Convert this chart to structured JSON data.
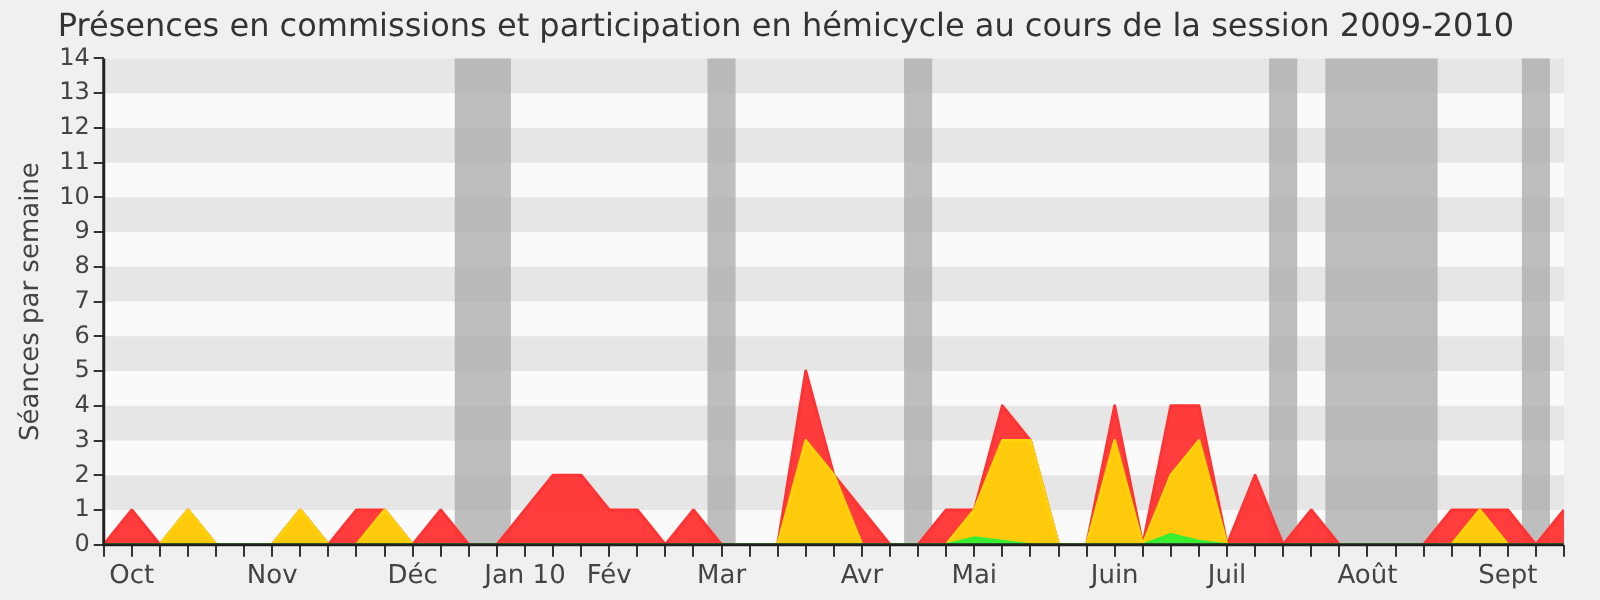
{
  "chart_data": {
    "type": "area",
    "title": "Présences en commissions et participation en hémicycle au cours de la session 2009-2010",
    "ylabel": "Séances par semaine",
    "x": [
      "2009-09-28",
      "2009-10-05",
      "2009-10-12",
      "2009-10-19",
      "2009-10-26",
      "2009-11-02",
      "2009-11-09",
      "2009-11-16",
      "2009-11-23",
      "2009-11-30",
      "2009-12-07",
      "2009-12-14",
      "2009-12-21",
      "2009-12-28",
      "2010-01-04",
      "2010-01-11",
      "2010-01-18",
      "2010-01-25",
      "2010-02-01",
      "2010-02-08",
      "2010-02-15",
      "2010-02-22",
      "2010-03-01",
      "2010-03-08",
      "2010-03-15",
      "2010-03-22",
      "2010-03-29",
      "2010-04-05",
      "2010-04-12",
      "2010-04-19",
      "2010-04-26",
      "2010-05-03",
      "2010-05-10",
      "2010-05-17",
      "2010-05-24",
      "2010-05-31",
      "2010-06-07",
      "2010-06-14",
      "2010-06-21",
      "2010-06-28",
      "2010-07-05",
      "2010-07-12",
      "2010-07-19",
      "2010-07-26",
      "2010-08-02",
      "2010-08-09",
      "2010-08-16",
      "2010-08-23",
      "2010-08-30",
      "2010-09-06",
      "2010-09-13",
      "2010-09-20",
      "2010-09-27"
    ],
    "series": [
      {
        "color": "#ff3333",
        "values": [
          0,
          1,
          0,
          1,
          0,
          0,
          0,
          1,
          0,
          1,
          1,
          0,
          1,
          0,
          0,
          1,
          2,
          2,
          1,
          1,
          0,
          1,
          0,
          0,
          0,
          5,
          2,
          1,
          0,
          0,
          1,
          1,
          4,
          3,
          0,
          0,
          4,
          0,
          4,
          4,
          0,
          2,
          0,
          1,
          0,
          0,
          0,
          0,
          1,
          1,
          1,
          0,
          1
        ]
      },
      {
        "color": "#ffd20a",
        "values": [
          0,
          0,
          0,
          1,
          0,
          0,
          0,
          1,
          0,
          0,
          1,
          0,
          0,
          0,
          0,
          0,
          0,
          0,
          0,
          0,
          0,
          0,
          0,
          0,
          0,
          3,
          2,
          0,
          0,
          0,
          0,
          1,
          3,
          3,
          0,
          0,
          3,
          0,
          2,
          3,
          0,
          0,
          0,
          0,
          0,
          0,
          0,
          0,
          0,
          1,
          0,
          0,
          0
        ]
      },
      {
        "color": "#33ee33",
        "values": [
          0,
          0,
          0,
          0,
          0,
          0,
          0,
          0,
          0,
          0,
          0,
          0,
          0,
          0,
          0,
          0,
          0,
          0,
          0,
          0,
          0,
          0,
          0,
          0,
          0,
          0,
          0,
          0,
          0,
          0,
          0,
          0.2,
          0.1,
          0,
          0,
          0,
          0,
          0,
          0.3,
          0.1,
          0,
          0,
          0,
          0,
          0,
          0,
          0,
          0,
          0,
          0,
          0,
          0,
          0
        ]
      }
    ],
    "xlim": [
      "2009-09-28",
      "2010-09-27"
    ],
    "xticks": [
      {
        "value": "2009-09-28",
        "label": null
      },
      {
        "value": "2009-10-05",
        "label": "Oct"
      },
      {
        "value": "2009-10-12",
        "label": null
      },
      {
        "value": "2009-10-19",
        "label": null
      },
      {
        "value": "2009-10-26",
        "label": null
      },
      {
        "value": "2009-11-02",
        "label": null
      },
      {
        "value": "2009-11-09",
        "label": "Nov"
      },
      {
        "value": "2009-11-16",
        "label": null
      },
      {
        "value": "2009-11-23",
        "label": null
      },
      {
        "value": "2009-11-30",
        "label": null
      },
      {
        "value": "2009-12-07",
        "label": null
      },
      {
        "value": "2009-12-14",
        "label": "Déc"
      },
      {
        "value": "2009-12-21",
        "label": null
      },
      {
        "value": "2009-12-28",
        "label": null
      },
      {
        "value": "2010-01-04",
        "label": null
      },
      {
        "value": "2010-01-11",
        "label": "Jan 10"
      },
      {
        "value": "2010-01-18",
        "label": null
      },
      {
        "value": "2010-01-25",
        "label": null
      },
      {
        "value": "2010-02-01",
        "label": "Fév"
      },
      {
        "value": "2010-02-08",
        "label": null
      },
      {
        "value": "2010-02-15",
        "label": null
      },
      {
        "value": "2010-02-22",
        "label": null
      },
      {
        "value": "2010-03-01",
        "label": "Mar"
      },
      {
        "value": "2010-03-08",
        "label": null
      },
      {
        "value": "2010-03-15",
        "label": null
      },
      {
        "value": "2010-03-22",
        "label": null
      },
      {
        "value": "2010-03-29",
        "label": null
      },
      {
        "value": "2010-04-05",
        "label": "Avr"
      },
      {
        "value": "2010-04-12",
        "label": null
      },
      {
        "value": "2010-04-19",
        "label": null
      },
      {
        "value": "2010-04-26",
        "label": null
      },
      {
        "value": "2010-05-03",
        "label": "Mai"
      },
      {
        "value": "2010-05-10",
        "label": null
      },
      {
        "value": "2010-05-17",
        "label": null
      },
      {
        "value": "2010-05-24",
        "label": null
      },
      {
        "value": "2010-05-31",
        "label": null
      },
      {
        "value": "2010-06-07",
        "label": "Juin"
      },
      {
        "value": "2010-06-14",
        "label": null
      },
      {
        "value": "2010-06-21",
        "label": null
      },
      {
        "value": "2010-06-28",
        "label": null
      },
      {
        "value": "2010-07-05",
        "label": "Juil"
      },
      {
        "value": "2010-07-12",
        "label": null
      },
      {
        "value": "2010-07-19",
        "label": null
      },
      {
        "value": "2010-07-26",
        "label": null
      },
      {
        "value": "2010-08-02",
        "label": null
      },
      {
        "value": "2010-08-09",
        "label": "Août"
      },
      {
        "value": "2010-08-16",
        "label": null
      },
      {
        "value": "2010-08-23",
        "label": null
      },
      {
        "value": "2010-08-30",
        "label": null
      },
      {
        "value": "2010-09-06",
        "label": null
      },
      {
        "value": "2010-09-13",
        "label": "Sept"
      },
      {
        "value": "2010-09-20",
        "label": null
      },
      {
        "value": "2010-09-27",
        "label": null
      }
    ],
    "ylim": [
      0,
      14
    ],
    "yticks": [
      0,
      1,
      2,
      3,
      4,
      5,
      6,
      7,
      8,
      9,
      10,
      11,
      12,
      13,
      14
    ],
    "bands": [
      {
        "axis": "x",
        "from": "2009-12-24T12:00",
        "to": "2010-01-07T12:00",
        "color": "#aaaaaa"
      },
      {
        "axis": "x",
        "from": "2010-02-25T12:00",
        "to": "2010-03-04T12:00",
        "color": "#aaaaaa"
      },
      {
        "axis": "x",
        "from": "2010-04-15T12:00",
        "to": "2010-04-22T12:00",
        "color": "#aaaaaa"
      },
      {
        "axis": "x",
        "from": "2010-07-15T12:00",
        "to": "2010-07-22T12:00",
        "color": "#aaaaaa"
      },
      {
        "axis": "x",
        "from": "2010-07-29T12:00",
        "to": "2010-08-26T12:00",
        "color": "#aaaaaa"
      },
      {
        "axis": "x",
        "from": "2010-09-16T12:00",
        "to": "2010-09-23T12:00",
        "color": "#aaaaaa"
      }
    ],
    "legend": false,
    "marker": "none"
  }
}
